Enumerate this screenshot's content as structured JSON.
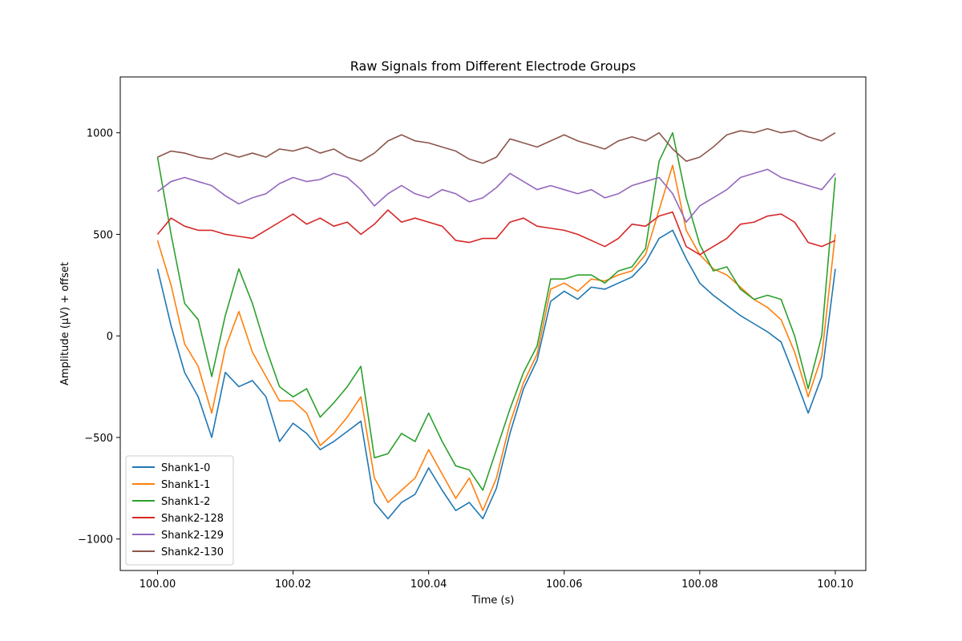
{
  "chart_data": {
    "type": "line",
    "title": "Raw Signals from Different Electrode Groups",
    "xlabel": "Time (s)",
    "ylabel": "Amplitude (µV) + offset",
    "xlim": [
      99.9945,
      100.1045
    ],
    "ylim": [
      -1155,
      1275
    ],
    "x_ticks": [
      100.0,
      100.02,
      100.04,
      100.06,
      100.08,
      100.1
    ],
    "x_tick_labels": [
      "100.00",
      "100.02",
      "100.04",
      "100.06",
      "100.08",
      "100.10"
    ],
    "y_ticks": [
      -1000,
      -500,
      0,
      500,
      1000
    ],
    "y_tick_labels": [
      "−1000",
      "−500",
      "0",
      "500",
      "1000"
    ],
    "grid": false,
    "legend_position": "lower-left",
    "x": [
      100.0,
      100.002,
      100.004,
      100.006,
      100.008,
      100.01,
      100.012,
      100.014,
      100.016,
      100.018,
      100.02,
      100.022,
      100.024,
      100.026,
      100.028,
      100.03,
      100.032,
      100.034,
      100.036,
      100.038,
      100.04,
      100.042,
      100.044,
      100.046,
      100.048,
      100.05,
      100.052,
      100.054,
      100.056,
      100.058,
      100.06,
      100.062,
      100.064,
      100.066,
      100.068,
      100.07,
      100.072,
      100.074,
      100.076,
      100.078,
      100.08,
      100.082,
      100.084,
      100.086,
      100.088,
      100.09,
      100.092,
      100.094,
      100.096,
      100.098,
      100.1
    ],
    "series": [
      {
        "name": "Shank1-0",
        "color": "#1f77b4",
        "values": [
          330,
          50,
          -180,
          -300,
          -500,
          -180,
          -250,
          -220,
          -300,
          -520,
          -430,
          -480,
          -560,
          -520,
          -470,
          -420,
          -820,
          -900,
          -820,
          -780,
          -650,
          -760,
          -860,
          -820,
          -900,
          -750,
          -480,
          -260,
          -120,
          170,
          220,
          180,
          240,
          230,
          260,
          290,
          360,
          480,
          520,
          380,
          260,
          200,
          150,
          100,
          60,
          20,
          -30,
          -200,
          -380,
          -200,
          330
        ]
      },
      {
        "name": "Shank1-1",
        "color": "#ff7f0e",
        "values": [
          470,
          250,
          -40,
          -150,
          -380,
          -60,
          120,
          -80,
          -200,
          -320,
          -320,
          -380,
          -540,
          -480,
          -400,
          -300,
          -700,
          -820,
          -760,
          -700,
          -560,
          -680,
          -800,
          -700,
          -860,
          -700,
          -430,
          -230,
          -90,
          230,
          260,
          220,
          280,
          270,
          300,
          320,
          400,
          620,
          840,
          520,
          400,
          330,
          300,
          240,
          180,
          140,
          80,
          -80,
          -300,
          -100,
          500
        ]
      },
      {
        "name": "Shank1-2",
        "color": "#2ca02c",
        "values": [
          880,
          500,
          160,
          80,
          -200,
          100,
          330,
          160,
          -60,
          -250,
          -300,
          -260,
          -400,
          -330,
          -250,
          -150,
          -600,
          -580,
          -480,
          -520,
          -380,
          -520,
          -640,
          -660,
          -760,
          -560,
          -360,
          -180,
          -50,
          280,
          280,
          300,
          300,
          260,
          320,
          340,
          430,
          860,
          1000,
          680,
          450,
          320,
          340,
          230,
          180,
          200,
          180,
          0,
          -260,
          0,
          780
        ]
      },
      {
        "name": "Shank2-128",
        "color": "#d62728",
        "values": [
          500,
          580,
          540,
          520,
          520,
          500,
          490,
          480,
          520,
          560,
          600,
          550,
          580,
          540,
          560,
          500,
          550,
          620,
          560,
          580,
          560,
          540,
          470,
          460,
          480,
          480,
          560,
          580,
          540,
          530,
          520,
          500,
          470,
          440,
          480,
          550,
          540,
          590,
          610,
          440,
          400,
          440,
          480,
          550,
          560,
          590,
          600,
          560,
          460,
          440,
          470
        ]
      },
      {
        "name": "Shank2-129",
        "color": "#9467bd",
        "values": [
          710,
          760,
          780,
          760,
          740,
          690,
          650,
          680,
          700,
          750,
          780,
          760,
          770,
          800,
          780,
          720,
          640,
          700,
          740,
          700,
          680,
          720,
          700,
          660,
          680,
          730,
          800,
          760,
          720,
          740,
          720,
          700,
          720,
          680,
          700,
          740,
          760,
          780,
          700,
          560,
          640,
          680,
          720,
          780,
          800,
          820,
          780,
          760,
          740,
          720,
          800
        ]
      },
      {
        "name": "Shank2-130",
        "color": "#8c564b",
        "values": [
          880,
          910,
          900,
          880,
          870,
          900,
          880,
          900,
          880,
          920,
          910,
          930,
          900,
          920,
          880,
          860,
          900,
          960,
          990,
          960,
          950,
          930,
          910,
          870,
          850,
          880,
          970,
          950,
          930,
          960,
          990,
          960,
          940,
          920,
          960,
          980,
          960,
          1000,
          920,
          860,
          880,
          930,
          990,
          1010,
          1000,
          1020,
          1000,
          1010,
          980,
          960,
          1000
        ]
      }
    ]
  }
}
